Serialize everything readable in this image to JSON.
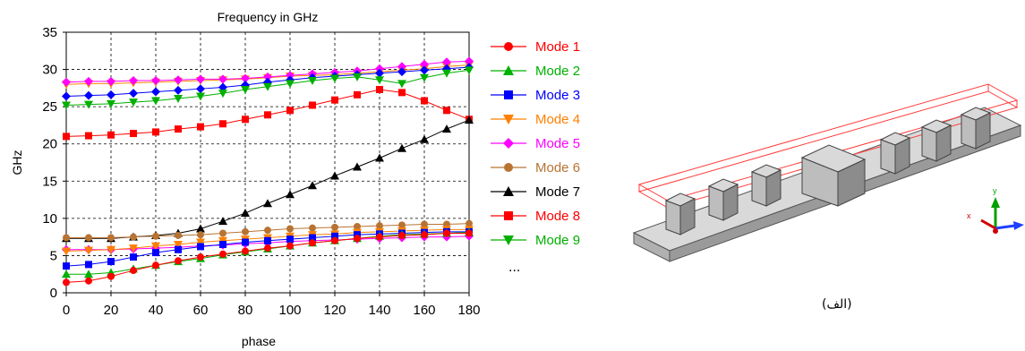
{
  "chart_data": {
    "type": "line",
    "title": "Frequency in GHz",
    "xlabel": "phase",
    "ylabel": "GHz",
    "xlim": [
      0,
      180
    ],
    "ylim": [
      0,
      35
    ],
    "xticks": [
      0,
      20,
      40,
      60,
      80,
      100,
      120,
      140,
      160,
      180
    ],
    "yticks": [
      0,
      5,
      10,
      15,
      20,
      25,
      30,
      35
    ],
    "grid": true,
    "legend": "right",
    "x": [
      0,
      10,
      20,
      30,
      40,
      50,
      60,
      70,
      80,
      90,
      100,
      110,
      120,
      130,
      140,
      150,
      160,
      170,
      180
    ],
    "series": [
      {
        "name": "Mode 1",
        "color": "#ff0000",
        "marker": "circle",
        "values": [
          1.4,
          1.6,
          2.2,
          3.0,
          3.7,
          4.3,
          4.8,
          5.2,
          5.6,
          6.0,
          6.3,
          6.7,
          7.0,
          7.3,
          7.5,
          7.7,
          7.8,
          8.0,
          8.0
        ]
      },
      {
        "name": "Mode 2",
        "color": "#00b000",
        "marker": "triangle-up",
        "values": [
          2.5,
          2.5,
          2.7,
          3.2,
          3.7,
          4.2,
          4.6,
          5.1,
          5.5,
          5.9,
          6.3,
          6.7,
          7.0,
          7.3,
          7.6,
          7.8,
          7.9,
          8.0,
          8.1
        ]
      },
      {
        "name": "Mode 3",
        "color": "#0000ff",
        "marker": "square",
        "values": [
          3.6,
          3.8,
          4.2,
          4.8,
          5.4,
          5.8,
          6.2,
          6.5,
          6.8,
          7.0,
          7.2,
          7.4,
          7.6,
          7.8,
          7.9,
          8.0,
          8.1,
          8.2,
          8.2
        ]
      },
      {
        "name": "Mode 4",
        "color": "#ff8000",
        "marker": "triangle-down",
        "values": [
          5.6,
          5.7,
          5.8,
          6.0,
          6.3,
          6.5,
          6.8,
          7.0,
          7.2,
          7.4,
          7.6,
          7.8,
          7.9,
          8.1,
          8.2,
          8.3,
          8.4,
          8.5,
          8.5
        ]
      },
      {
        "name": "Mode 5",
        "color": "#ff00ff",
        "marker": "diamond",
        "values": [
          5.8,
          5.8,
          5.8,
          5.9,
          6.0,
          6.1,
          6.3,
          6.4,
          6.6,
          6.7,
          6.9,
          7.0,
          7.1,
          7.2,
          7.3,
          7.4,
          7.5,
          7.5,
          7.6
        ]
      },
      {
        "name": "Mode 6",
        "color": "#b87333",
        "marker": "circle",
        "values": [
          7.4,
          7.4,
          7.4,
          7.5,
          7.6,
          7.7,
          7.8,
          8.0,
          8.2,
          8.4,
          8.6,
          8.7,
          8.8,
          8.9,
          9.0,
          9.1,
          9.2,
          9.2,
          9.3
        ]
      },
      {
        "name": "Mode 7",
        "color": "#000000",
        "marker": "triangle-up",
        "values": [
          7.3,
          7.3,
          7.3,
          7.5,
          7.7,
          8.0,
          8.6,
          9.6,
          10.7,
          12.0,
          13.2,
          14.4,
          15.7,
          16.9,
          18.1,
          19.4,
          20.6,
          22.0,
          23.2
        ]
      },
      {
        "name": "Mode 8",
        "color": "#ff0000",
        "marker": "square",
        "values": [
          21.0,
          21.1,
          21.2,
          21.4,
          21.6,
          22.0,
          22.3,
          22.7,
          23.3,
          23.9,
          24.5,
          25.2,
          25.9,
          26.6,
          27.3,
          26.9,
          25.8,
          24.5,
          23.3
        ]
      },
      {
        "name": "Mode 9",
        "color": "#00b000",
        "marker": "triangle-down",
        "values": [
          25.2,
          25.3,
          25.4,
          25.6,
          25.8,
          26.1,
          26.4,
          26.8,
          27.3,
          27.7,
          28.1,
          28.5,
          28.8,
          29.0,
          28.6,
          28.1,
          28.9,
          29.5,
          29.9
        ]
      },
      {
        "name": "",
        "color": "#0000ff",
        "marker": "diamond",
        "values": [
          26.4,
          26.5,
          26.6,
          26.8,
          27.0,
          27.2,
          27.4,
          27.6,
          27.9,
          28.3,
          28.6,
          28.9,
          29.1,
          29.3,
          29.5,
          29.7,
          29.9,
          30.1,
          30.3
        ]
      },
      {
        "name": "",
        "color": "#ff00ff",
        "marker": "diamond",
        "values": [
          28.3,
          28.4,
          28.4,
          28.5,
          28.5,
          28.6,
          28.7,
          28.7,
          28.8,
          29.0,
          29.2,
          29.4,
          29.6,
          29.8,
          30.1,
          30.4,
          30.7,
          31.0,
          31.1
        ]
      },
      {
        "name": "",
        "color": "#ff8000",
        "marker": "triangle-down",
        "values": [
          28.0,
          28.1,
          28.1,
          28.2,
          28.3,
          28.4,
          28.5,
          28.6,
          28.7,
          28.9,
          29.1,
          29.2,
          29.3,
          29.5,
          29.7,
          29.9,
          30.1,
          30.4,
          30.6
        ]
      }
    ]
  },
  "legend_more": "...",
  "figure_caption": "(الف)",
  "axes_triad": {
    "x": "x",
    "y": "y"
  }
}
